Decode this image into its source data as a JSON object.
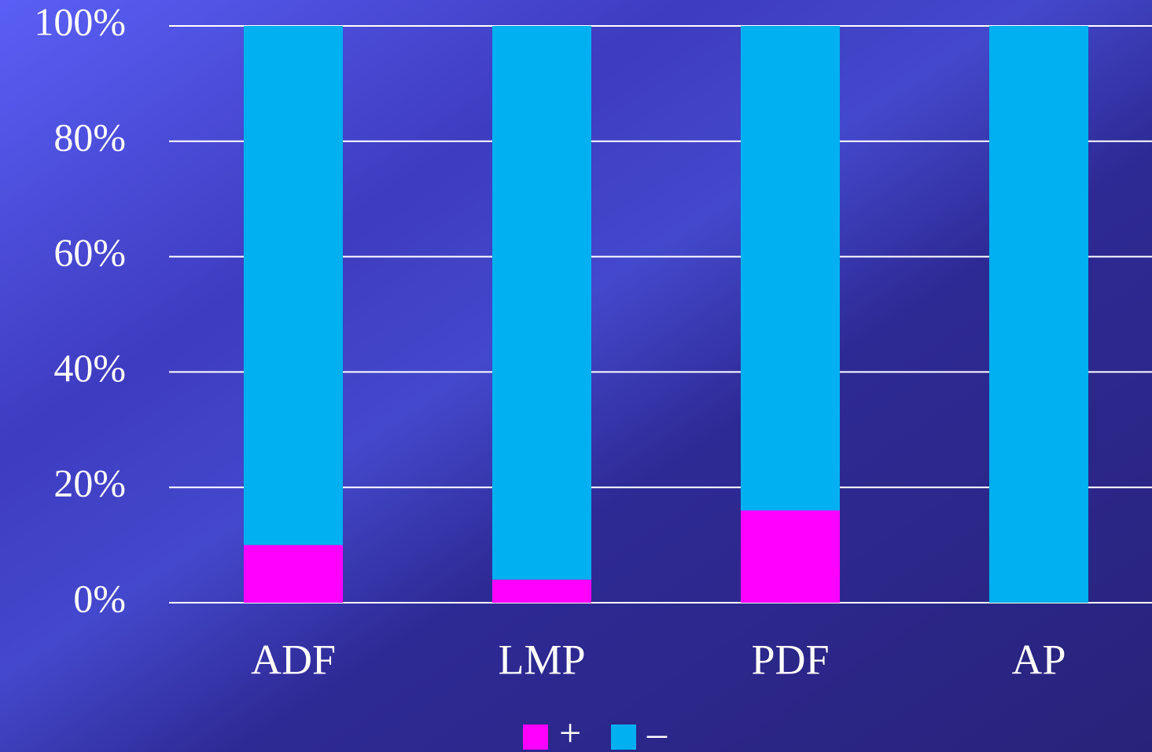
{
  "chart_data": {
    "type": "stacked_bar",
    "categories": [
      "ADF",
      "LMP",
      "PDF",
      "AP"
    ],
    "series": [
      {
        "name": "+",
        "color": "#ff00ff",
        "values": [
          10,
          4,
          16,
          0
        ]
      },
      {
        "name": "–",
        "color": "#00b0f0",
        "values": [
          90,
          96,
          84,
          100
        ]
      }
    ],
    "ylim": [
      0,
      100
    ],
    "yticks": [
      {
        "value": 0,
        "label": "0%"
      },
      {
        "value": 20,
        "label": "20%"
      },
      {
        "value": 40,
        "label": "40%"
      },
      {
        "value": 60,
        "label": "60%"
      },
      {
        "value": 80,
        "label": "80%"
      },
      {
        "value": 100,
        "label": "100%"
      }
    ],
    "grid": true,
    "legend": "bottom"
  }
}
